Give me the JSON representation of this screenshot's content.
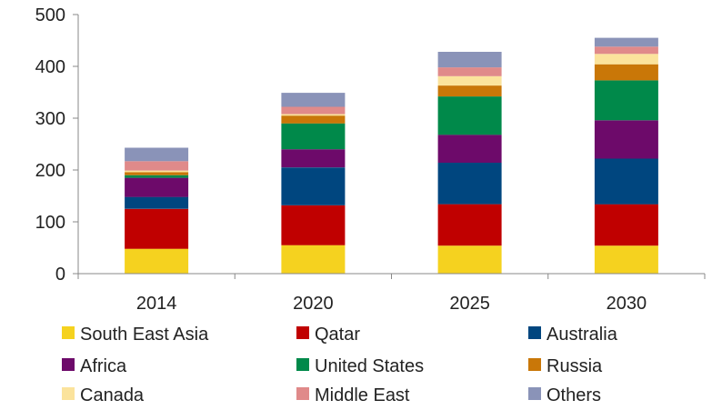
{
  "chart_data": {
    "type": "bar",
    "stacked": true,
    "categories": [
      "2014",
      "2020",
      "2025",
      "2030"
    ],
    "ylim": [
      0,
      500
    ],
    "yticks": [
      0,
      100,
      200,
      300,
      400,
      500
    ],
    "grid": false,
    "legend_position": "bottom",
    "series": [
      {
        "name": "South East Asia",
        "color": "#f5d21f",
        "values": [
          48,
          55,
          54,
          54
        ]
      },
      {
        "name": "Qatar",
        "color": "#c00000",
        "values": [
          77,
          77,
          80,
          80
        ]
      },
      {
        "name": "Australia",
        "color": "#00467f",
        "values": [
          23,
          73,
          80,
          88
        ]
      },
      {
        "name": "Africa",
        "color": "#6d0a6a",
        "values": [
          37,
          35,
          54,
          74
        ]
      },
      {
        "name": "United States",
        "color": "#00894a",
        "values": [
          5,
          50,
          74,
          77
        ]
      },
      {
        "name": "Russia",
        "color": "#c97708",
        "values": [
          6,
          15,
          21,
          31
        ]
      },
      {
        "name": "Canada",
        "color": "#fbe39c",
        "values": [
          3,
          3,
          18,
          20
        ]
      },
      {
        "name": "Middle East",
        "color": "#e08a8a",
        "values": [
          18,
          14,
          17,
          14
        ]
      },
      {
        "name": "Others",
        "color": "#8a93b8",
        "values": [
          26,
          27,
          30,
          17
        ]
      }
    ]
  }
}
